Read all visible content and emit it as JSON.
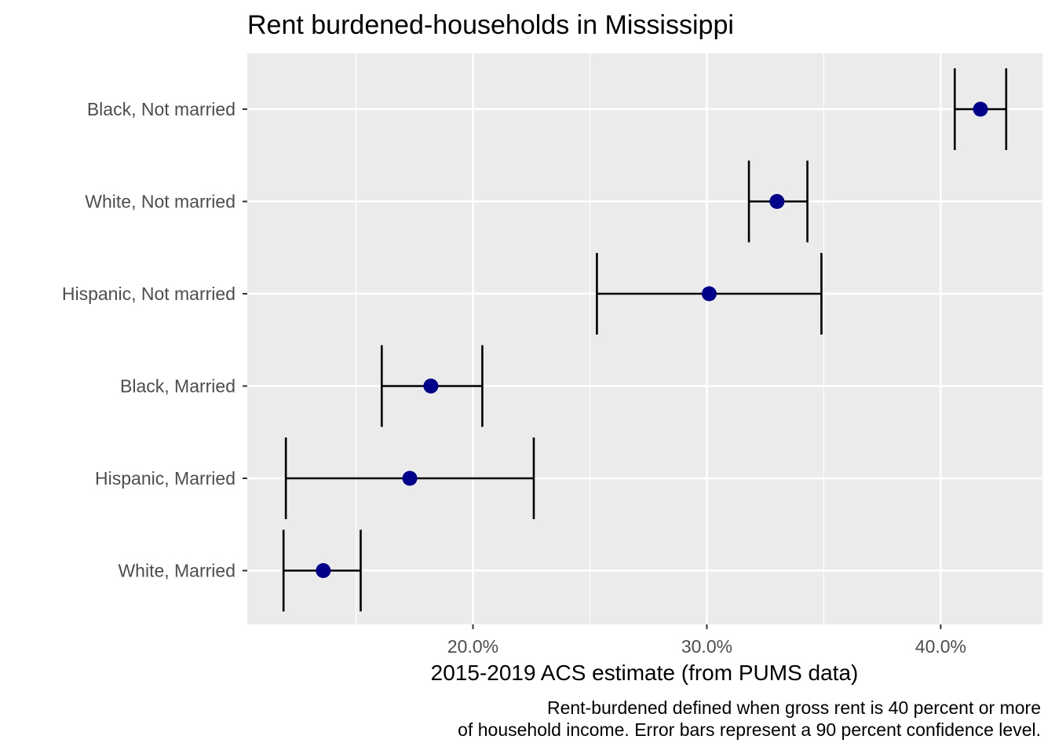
{
  "chart_data": {
    "type": "scatter",
    "title": "Rent burdened-households in Mississippi",
    "xlabel": "2015-2019 ACS estimate (from PUMS data)",
    "ylabel": "",
    "caption": [
      "Rent-burdened defined when gross rent is 40 percent or more",
      "of household income. Error bars represent a 90 percent confidence level."
    ],
    "xlim": [
      0.1035,
      0.4435
    ],
    "x_ticks": [
      {
        "value": 0.2,
        "label": "20.0%"
      },
      {
        "value": 0.3,
        "label": "30.0%"
      },
      {
        "value": 0.4,
        "label": "40.0%"
      }
    ],
    "grid": true,
    "point_color": "#00008B",
    "errorbar_color": "#000000",
    "panel_background": "#EBEBEB",
    "categories": [
      "Black, Not married",
      "White, Not married",
      "Hispanic, Not married",
      "Black, Married",
      "Hispanic, Married",
      "White, Married"
    ],
    "estimates": [
      0.417,
      0.33,
      0.301,
      0.182,
      0.173,
      0.136
    ],
    "lower": [
      0.406,
      0.318,
      0.253,
      0.161,
      0.12,
      0.119
    ],
    "upper": [
      0.428,
      0.343,
      0.349,
      0.204,
      0.226,
      0.152
    ]
  }
}
